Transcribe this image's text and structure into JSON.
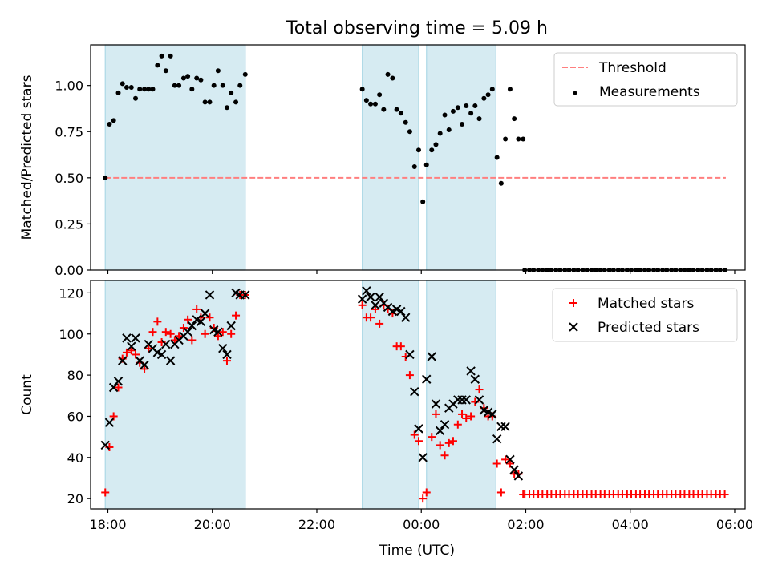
{
  "figure": {
    "title": "Total observing time = 5.09 h",
    "xlabel": "Time (UTC)"
  },
  "colors": {
    "span": "#add8e6",
    "threshold": "#ff7f7f",
    "measurement": "#000000",
    "matched": "#ff0000",
    "predicted": "#000000"
  },
  "chart_data": [
    {
      "type": "scatter",
      "title": "Total observing time = 5.09 h",
      "ylabel": "Matched/Predicted stars",
      "ylim": [
        0,
        1.22
      ],
      "xlim": [
        17.67,
        30.2
      ],
      "yticks": [
        0.0,
        0.25,
        0.5,
        0.75,
        1.0
      ],
      "ytick_labels": [
        "0.00",
        "0.25",
        "0.50",
        "0.75",
        "1.00"
      ],
      "legend": [
        "Threshold",
        "Measurements"
      ],
      "legend_placement": "upper right",
      "spans": [
        [
          17.95,
          20.63
        ],
        [
          22.87,
          23.95
        ],
        [
          24.1,
          25.43
        ]
      ],
      "threshold": {
        "name": "Threshold",
        "value": 0.5,
        "x": [
          17.95,
          29.83
        ]
      },
      "series": [
        {
          "name": "Measurements",
          "x": [
            17.95,
            18.03,
            18.11,
            18.2,
            18.28,
            18.36,
            18.45,
            18.53,
            18.61,
            18.7,
            18.78,
            18.86,
            18.95,
            19.03,
            19.11,
            19.2,
            19.28,
            19.36,
            19.45,
            19.53,
            19.61,
            19.7,
            19.78,
            19.86,
            19.95,
            20.03,
            20.11,
            20.2,
            20.28,
            20.36,
            20.45,
            20.53,
            20.63,
            22.87,
            22.95,
            23.03,
            23.12,
            23.2,
            23.28,
            23.36,
            23.45,
            23.53,
            23.61,
            23.7,
            23.78,
            23.87,
            23.95,
            24.03,
            24.1,
            24.2,
            24.28,
            24.36,
            24.45,
            24.53,
            24.61,
            24.7,
            24.78,
            24.86,
            24.95,
            25.03,
            25.11,
            25.2,
            25.28,
            25.36,
            25.45,
            25.53,
            25.61,
            25.7,
            25.78,
            25.86,
            25.95,
            25.98,
            26.07,
            26.15,
            26.24,
            26.32,
            26.41,
            26.49,
            26.58,
            26.66,
            26.75,
            26.83,
            26.92,
            27.0,
            27.09,
            27.17,
            27.26,
            27.34,
            27.43,
            27.51,
            27.6,
            27.68,
            27.77,
            27.85,
            27.94,
            28.02,
            28.11,
            28.19,
            28.28,
            28.36,
            28.45,
            28.53,
            28.62,
            28.7,
            28.79,
            28.87,
            28.96,
            29.04,
            29.13,
            29.21,
            29.3,
            29.38,
            29.47,
            29.55,
            29.64,
            29.72,
            29.81
          ],
          "y": [
            0.5,
            0.79,
            0.81,
            0.96,
            1.01,
            0.99,
            0.99,
            0.93,
            0.98,
            0.98,
            0.98,
            0.98,
            1.11,
            1.16,
            1.08,
            1.16,
            1.0,
            1.0,
            1.04,
            1.05,
            0.98,
            1.04,
            1.03,
            0.91,
            0.91,
            1.0,
            1.08,
            1.0,
            0.88,
            0.96,
            0.91,
            1.0,
            1.06,
            0.98,
            0.92,
            0.9,
            0.9,
            0.95,
            0.87,
            1.06,
            1.04,
            0.87,
            0.85,
            0.8,
            0.75,
            0.56,
            0.65,
            0.37,
            0.57,
            0.65,
            0.68,
            0.74,
            0.84,
            0.76,
            0.86,
            0.88,
            0.79,
            0.89,
            0.85,
            0.89,
            0.82,
            0.93,
            0.95,
            0.98,
            0.61,
            0.47,
            0.71,
            0.98,
            0.82,
            0.71,
            0.71,
            0,
            0,
            0,
            0,
            0,
            0,
            0,
            0,
            0,
            0,
            0,
            0,
            0,
            0,
            0,
            0,
            0,
            0,
            0,
            0,
            0,
            0,
            0,
            0,
            0,
            0,
            0,
            0,
            0,
            0,
            0,
            0,
            0,
            0,
            0,
            0,
            0,
            0,
            0,
            0,
            0,
            0,
            0,
            0,
            0,
            0
          ]
        }
      ]
    },
    {
      "type": "scatter",
      "xlabel": "Time (UTC)",
      "ylabel": "Count",
      "ylim": [
        15,
        126
      ],
      "xlim": [
        17.67,
        30.2
      ],
      "yticks": [
        20,
        40,
        60,
        80,
        100,
        120
      ],
      "ytick_labels": [
        "20",
        "40",
        "60",
        "80",
        "100",
        "120"
      ],
      "xticks": [
        18,
        20,
        22,
        24,
        26,
        28,
        30
      ],
      "xtick_labels": [
        "18:00",
        "20:00",
        "22:00",
        "00:00",
        "02:00",
        "04:00",
        "06:00"
      ],
      "legend": [
        "Matched stars",
        "Predicted stars"
      ],
      "legend_placement": "upper right",
      "spans": [
        [
          17.95,
          20.63
        ],
        [
          22.87,
          23.95
        ],
        [
          24.1,
          25.43
        ]
      ],
      "series": [
        {
          "name": "Matched stars",
          "marker": "plus",
          "x": [
            17.95,
            18.03,
            18.11,
            18.2,
            18.28,
            18.36,
            18.45,
            18.53,
            18.61,
            18.7,
            18.78,
            18.86,
            18.95,
            19.03,
            19.11,
            19.2,
            19.28,
            19.36,
            19.45,
            19.53,
            19.61,
            19.7,
            19.78,
            19.86,
            19.95,
            20.03,
            20.11,
            20.2,
            20.28,
            20.36,
            20.45,
            20.53,
            20.63,
            22.87,
            22.95,
            23.03,
            23.12,
            23.2,
            23.28,
            23.36,
            23.45,
            23.53,
            23.61,
            23.7,
            23.78,
            23.87,
            23.95,
            24.03,
            24.1,
            24.2,
            24.28,
            24.36,
            24.45,
            24.53,
            24.61,
            24.7,
            24.78,
            24.86,
            24.95,
            25.03,
            25.11,
            25.2,
            25.28,
            25.36,
            25.45,
            25.53,
            25.61,
            25.7,
            25.78,
            25.86,
            25.95,
            25.98,
            26.07,
            26.15,
            26.24,
            26.32,
            26.41,
            26.49,
            26.58,
            26.66,
            26.75,
            26.83,
            26.92,
            27.0,
            27.09,
            27.17,
            27.26,
            27.34,
            27.43,
            27.51,
            27.6,
            27.68,
            27.77,
            27.85,
            27.94,
            28.02,
            28.11,
            28.19,
            28.28,
            28.36,
            28.45,
            28.53,
            28.62,
            28.7,
            28.79,
            28.87,
            28.96,
            29.04,
            29.13,
            29.21,
            29.3,
            29.38,
            29.47,
            29.55,
            29.64,
            29.72,
            29.81
          ],
          "y": [
            23,
            45,
            60,
            74,
            88,
            91,
            92,
            90,
            86,
            83,
            93,
            101,
            106,
            96,
            101,
            100,
            97,
            99,
            103,
            107,
            97,
            112,
            108,
            100,
            108,
            103,
            99,
            101,
            87,
            100,
            109,
            119,
            119,
            114,
            108,
            108,
            112,
            105,
            114,
            112,
            110,
            94,
            94,
            89,
            80,
            51,
            48,
            20,
            23,
            50,
            61,
            46,
            41,
            47,
            48,
            56,
            61,
            59,
            60,
            67,
            73,
            64,
            60,
            60,
            37,
            23,
            39,
            37,
            32,
            32,
            22,
            22,
            22,
            22,
            22,
            22,
            22,
            22,
            22,
            22,
            22,
            22,
            22,
            22,
            22,
            22,
            22,
            22,
            22,
            22,
            22,
            22,
            22,
            22,
            22,
            22,
            22,
            22,
            22,
            22,
            22,
            22,
            22,
            22,
            22,
            22,
            22,
            22,
            22,
            22,
            22,
            22,
            22,
            22,
            22,
            22,
            22
          ]
        },
        {
          "name": "Predicted stars",
          "marker": "x",
          "x": [
            17.95,
            18.03,
            18.11,
            18.2,
            18.28,
            18.36,
            18.45,
            18.53,
            18.61,
            18.7,
            18.78,
            18.86,
            18.95,
            19.03,
            19.11,
            19.2,
            19.28,
            19.36,
            19.45,
            19.53,
            19.61,
            19.7,
            19.78,
            19.86,
            19.95,
            20.03,
            20.11,
            20.2,
            20.28,
            20.36,
            20.45,
            20.53,
            20.63,
            22.87,
            22.95,
            23.03,
            23.12,
            23.2,
            23.28,
            23.36,
            23.45,
            23.53,
            23.61,
            23.7,
            23.78,
            23.87,
            23.95,
            24.03,
            24.1,
            24.2,
            24.28,
            24.36,
            24.45,
            24.53,
            24.61,
            24.7,
            24.78,
            24.86,
            24.95,
            25.03,
            25.11,
            25.2,
            25.28,
            25.36,
            25.45,
            25.53,
            25.61,
            25.7,
            25.78,
            25.86
          ],
          "y": [
            46,
            57,
            74,
            77,
            87,
            98,
            94,
            98,
            87,
            85,
            95,
            93,
            91,
            90,
            95,
            87,
            95,
            97,
            99,
            101,
            104,
            107,
            106,
            110,
            119,
            102,
            101,
            93,
            90,
            104,
            120,
            119,
            119,
            117,
            121,
            118,
            114,
            118,
            115,
            113,
            111,
            112,
            111,
            108,
            90,
            72,
            54,
            40,
            78,
            89,
            66,
            53,
            56,
            64,
            66,
            68,
            68,
            68,
            82,
            78,
            68,
            63,
            62,
            61,
            49,
            55,
            55,
            39,
            34,
            31
          ]
        }
      ]
    }
  ]
}
